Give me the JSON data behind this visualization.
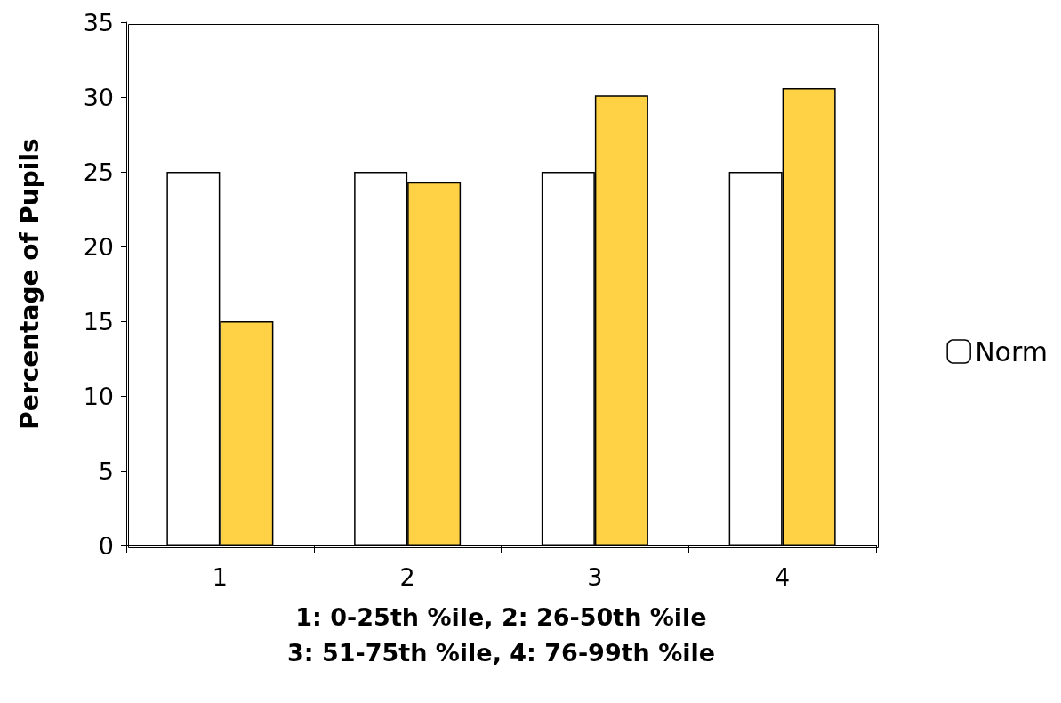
{
  "chart_data": {
    "type": "bar",
    "categories": [
      "1",
      "2",
      "3",
      "4"
    ],
    "series": [
      {
        "name": "Norm",
        "color": "#ffffff",
        "values": [
          25,
          25,
          25,
          25
        ]
      },
      {
        "color": "#ffd245",
        "values": [
          15,
          24.3,
          30.1,
          30.6
        ]
      }
    ],
    "ylabel": "Percentage of Pupils",
    "xlabel": "1: 0-25th %ile, 2: 26-50th %ile\n3: 51-75th %ile, 4: 76-99th %ile",
    "ylim": [
      0,
      35
    ],
    "yticks": [
      0,
      5,
      10,
      15,
      20,
      25,
      30,
      35
    ],
    "grid": false,
    "legend": "right"
  }
}
